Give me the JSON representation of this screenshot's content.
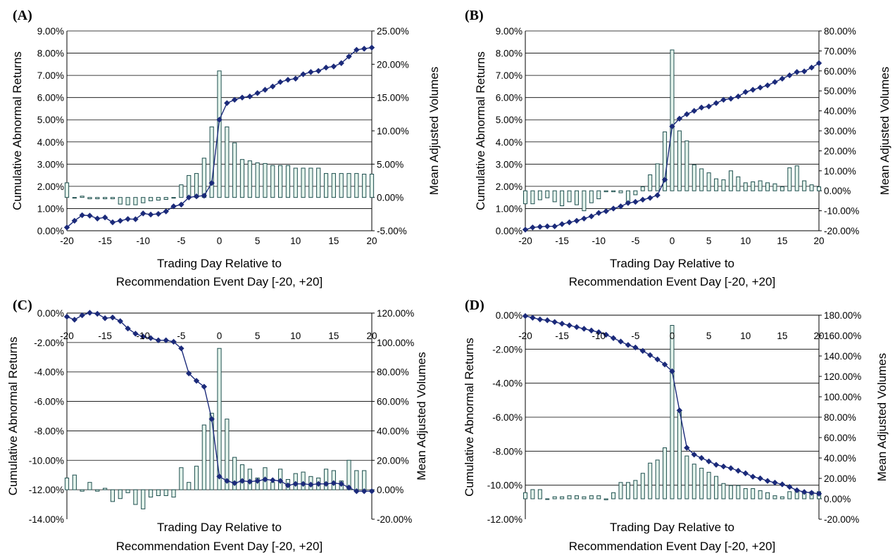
{
  "charts": [
    {
      "panel": "(A)",
      "left_axis": {
        "label": "Cumulative Abnormal Returns",
        "min": 0,
        "max": 9,
        "step": 1,
        "decimals": 2
      },
      "right_axis": {
        "label": "Mean Adjusted Volumes",
        "min": -5,
        "max": 25,
        "step": 5,
        "decimals": 2
      },
      "x_axis": {
        "label_line1": "Trading Day Relative to",
        "label_line2": "Recommendation Event Day [-20, +20]",
        "ticks": [
          -20,
          -15,
          -10,
          -5,
          0,
          5,
          10,
          15,
          20
        ]
      }
    },
    {
      "panel": "(B)",
      "left_axis": {
        "label": "Cumulative Abnormal Returns",
        "min": 0,
        "max": 9,
        "step": 1,
        "decimals": 2
      },
      "right_axis": {
        "label": "Mean Adjusted Volumes",
        "min": -20,
        "max": 80,
        "step": 10,
        "decimals": 2
      },
      "x_axis": {
        "label_line1": "Trading Day Relative to",
        "label_line2": "Recommendation Event Day [-20, +20]",
        "ticks": [
          -20,
          -15,
          -10,
          -5,
          0,
          5,
          10,
          15,
          20
        ]
      }
    },
    {
      "panel": "(C)",
      "left_axis": {
        "label": "Cumulative Abnormal Returns",
        "min": -14,
        "max": 0,
        "step": 2,
        "decimals": 2
      },
      "right_axis": {
        "label": "Mean Adjusted Volumes",
        "min": -20,
        "max": 120,
        "step": 20,
        "decimals": 2
      },
      "x_axis": {
        "label_line1": "Trading Day Relative to",
        "label_line2": "Recommendation Event Day [-20, +20]",
        "ticks": [
          -20,
          -15,
          -10,
          -5,
          0,
          5,
          10,
          15,
          20
        ]
      }
    },
    {
      "panel": "(D)",
      "left_axis": {
        "label": "Cumulative Abnormal Returns",
        "min": -12,
        "max": 0,
        "step": 2,
        "decimals": 2
      },
      "right_axis": {
        "label": "Mean Adjusted Volumes",
        "min": -20,
        "max": 180,
        "step": 20,
        "decimals": 2
      },
      "x_axis": {
        "label_line1": "Trading Day Relative to",
        "label_line2": "Recommendation Event Day [-20, +20]",
        "ticks": [
          -20,
          -15,
          -10,
          -5,
          0,
          5,
          10,
          15,
          20
        ]
      }
    }
  ],
  "chart_data": [
    {
      "type": "bar",
      "panel": "(A)",
      "x": [
        -20,
        -19,
        -18,
        -17,
        -16,
        -15,
        -14,
        -13,
        -12,
        -11,
        -10,
        -9,
        -8,
        -7,
        -6,
        -5,
        -4,
        -3,
        -2,
        -1,
        0,
        1,
        2,
        3,
        4,
        5,
        6,
        7,
        8,
        9,
        10,
        11,
        12,
        13,
        14,
        15,
        16,
        17,
        18,
        19,
        20
      ],
      "xlim": [
        -20,
        20
      ],
      "grid": true,
      "series": [
        {
          "axis": "right",
          "kind": "bar",
          "values": [
            2.2,
            -0.1,
            0.2,
            -0.2,
            -0.2,
            -0.2,
            -0.2,
            -1.0,
            -1.1,
            -1.1,
            -0.8,
            -0.5,
            -0.4,
            -0.3,
            0,
            1.9,
            3.3,
            3.6,
            5.9,
            10.6,
            19.0,
            10.6,
            8.2,
            5.7,
            5.5,
            5.2,
            5.1,
            4.8,
            4.8,
            4.8,
            4.4,
            4.4,
            4.4,
            4.4,
            3.6,
            3.6,
            3.6,
            3.6,
            3.6,
            3.5,
            3.5
          ]
        },
        {
          "axis": "left",
          "kind": "line",
          "values": [
            0.15,
            0.45,
            0.7,
            0.68,
            0.55,
            0.6,
            0.38,
            0.45,
            0.53,
            0.52,
            0.78,
            0.73,
            0.76,
            0.87,
            1.1,
            1.18,
            1.5,
            1.55,
            1.58,
            2.15,
            5.0,
            5.75,
            5.9,
            6.0,
            6.05,
            6.2,
            6.35,
            6.5,
            6.7,
            6.8,
            6.85,
            7.05,
            7.15,
            7.2,
            7.35,
            7.4,
            7.55,
            7.85,
            8.15,
            8.2,
            8.25
          ]
        }
      ]
    },
    {
      "type": "bar",
      "panel": "(B)",
      "x": [
        -20,
        -19,
        -18,
        -17,
        -16,
        -15,
        -14,
        -13,
        -12,
        -11,
        -10,
        -9,
        -8,
        -7,
        -6,
        -5,
        -4,
        -3,
        -2,
        -1,
        0,
        1,
        2,
        3,
        4,
        5,
        6,
        7,
        8,
        9,
        10,
        11,
        12,
        13,
        14,
        15,
        16,
        17,
        18,
        19,
        20
      ],
      "xlim": [
        -20,
        20
      ],
      "grid": true,
      "series": [
        {
          "axis": "right",
          "kind": "bar",
          "values": [
            -6.5,
            -6.5,
            -4.5,
            -3.5,
            -5.5,
            -7.5,
            -5.5,
            -7.0,
            -10.0,
            -6.0,
            -4.0,
            -0.5,
            -0.5,
            -1.0,
            -5.5,
            -2.0,
            2.0,
            8.0,
            13.5,
            29.5,
            70.5,
            30.0,
            25.0,
            13.0,
            11.0,
            9.0,
            6.0,
            5.5,
            10.0,
            7.0,
            4.0,
            4.5,
            5.0,
            4.0,
            3.5,
            2.0,
            11.5,
            12.5,
            5.0,
            3.0,
            2.0
          ]
        },
        {
          "axis": "left",
          "kind": "line",
          "values": [
            0.05,
            0.15,
            0.18,
            0.2,
            0.2,
            0.3,
            0.38,
            0.45,
            0.55,
            0.65,
            0.8,
            0.88,
            1.0,
            1.1,
            1.25,
            1.3,
            1.4,
            1.48,
            1.6,
            2.3,
            4.7,
            5.05,
            5.25,
            5.4,
            5.55,
            5.6,
            5.75,
            5.9,
            5.95,
            6.05,
            6.25,
            6.35,
            6.45,
            6.55,
            6.7,
            6.85,
            7.0,
            7.15,
            7.18,
            7.35,
            7.55
          ]
        }
      ]
    },
    {
      "type": "bar",
      "panel": "(C)",
      "x": [
        -20,
        -19,
        -18,
        -17,
        -16,
        -15,
        -14,
        -13,
        -12,
        -11,
        -10,
        -9,
        -8,
        -7,
        -6,
        -5,
        -4,
        -3,
        -2,
        -1,
        0,
        1,
        2,
        3,
        4,
        5,
        6,
        7,
        8,
        9,
        10,
        11,
        12,
        13,
        14,
        15,
        16,
        17,
        18,
        19,
        20
      ],
      "xlim": [
        -20,
        20
      ],
      "grid": true,
      "series": [
        {
          "axis": "right",
          "kind": "bar",
          "values": [
            8,
            10,
            -1,
            5,
            -1,
            1,
            -8,
            -6,
            -2,
            -10,
            -13,
            -5,
            -4,
            -4,
            -5,
            15,
            5,
            16,
            44,
            52,
            96,
            48,
            22,
            17,
            14,
            8,
            15,
            5,
            14,
            7,
            11,
            12,
            9,
            8,
            14,
            13,
            6,
            20,
            13,
            13,
            -1
          ]
        },
        {
          "axis": "left",
          "kind": "line",
          "values": [
            -0.25,
            -0.45,
            -0.15,
            0.02,
            -0.05,
            -0.35,
            -0.3,
            -0.55,
            -1.05,
            -1.4,
            -1.6,
            -1.7,
            -1.85,
            -1.85,
            -1.95,
            -2.4,
            -4.1,
            -4.6,
            -5.0,
            -7.2,
            -11.1,
            -11.4,
            -11.55,
            -11.4,
            -11.45,
            -11.4,
            -11.3,
            -11.35,
            -11.4,
            -11.7,
            -11.6,
            -11.6,
            -11.65,
            -11.6,
            -11.6,
            -11.55,
            -11.6,
            -11.85,
            -12.1,
            -12.1,
            -12.1
          ]
        }
      ]
    },
    {
      "type": "bar",
      "panel": "(D)",
      "x": [
        -20,
        -19,
        -18,
        -17,
        -16,
        -15,
        -14,
        -13,
        -12,
        -11,
        -10,
        -9,
        -8,
        -7,
        -6,
        -5,
        -4,
        -3,
        -2,
        -1,
        0,
        1,
        2,
        3,
        4,
        5,
        6,
        7,
        8,
        9,
        10,
        11,
        12,
        13,
        14,
        15,
        16,
        17,
        18,
        19,
        20
      ],
      "xlim": [
        -20,
        20
      ],
      "grid": true,
      "series": [
        {
          "axis": "right",
          "kind": "bar",
          "values": [
            6,
            9,
            9,
            0,
            2,
            2,
            3,
            3,
            2,
            3,
            3,
            -1,
            6,
            16,
            16,
            18,
            25,
            35,
            38,
            50,
            170,
            85,
            42,
            34,
            30,
            26,
            22,
            15,
            13,
            13,
            10,
            10,
            8,
            6,
            3,
            2,
            7,
            7,
            7,
            7,
            7
          ]
        },
        {
          "axis": "left",
          "kind": "line",
          "values": [
            -0.05,
            -0.15,
            -0.25,
            -0.3,
            -0.4,
            -0.5,
            -0.6,
            -0.7,
            -0.8,
            -0.9,
            -1.0,
            -1.15,
            -1.35,
            -1.55,
            -1.75,
            -1.9,
            -2.1,
            -2.35,
            -2.6,
            -2.9,
            -3.3,
            -5.6,
            -7.8,
            -8.2,
            -8.4,
            -8.6,
            -8.8,
            -8.9,
            -9.0,
            -9.15,
            -9.3,
            -9.5,
            -9.6,
            -9.75,
            -9.85,
            -9.95,
            -10.1,
            -10.3,
            -10.4,
            -10.45,
            -10.5
          ]
        }
      ]
    }
  ]
}
